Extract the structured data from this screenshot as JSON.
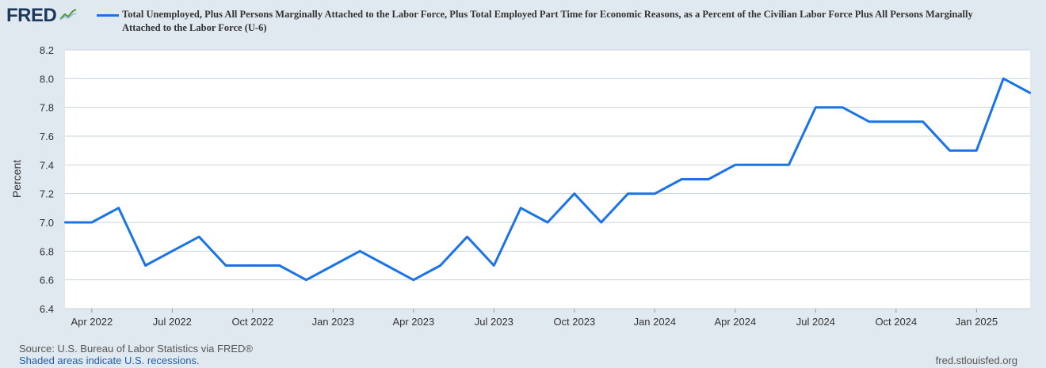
{
  "header": {
    "logo_text": "FRED",
    "logo_icon": "chart-line-icon",
    "series_title": "Total Unemployed, Plus All Persons Marginally Attached to the Labor Force, Plus Total Employed Part Time for Economic Reasons, as a Percent of the Civilian Labor Force Plus All Persons Marginally Attached to the Labor Force (U-6)"
  },
  "footer": {
    "source": "Source: U.S. Bureau of Labor Statistics via FRED®",
    "recessions": "Shaded areas indicate U.S. recessions.",
    "site": "fred.stlouisfed.org"
  },
  "colors": {
    "line": "#1a73e8",
    "background": "#e1e9f0",
    "plot": "#ffffff",
    "grid": "#c9d3dd"
  },
  "chart_data": {
    "type": "line",
    "ylabel": "Percent",
    "xlabel": "",
    "ylim": [
      6.4,
      8.2
    ],
    "y_ticks": [
      "6.4",
      "6.6",
      "6.8",
      "7.0",
      "7.2",
      "7.4",
      "7.6",
      "7.8",
      "8.0",
      "8.2"
    ],
    "x_ticks": [
      {
        "label": "Apr 2022",
        "date": "2022-04"
      },
      {
        "label": "Jul 2022",
        "date": "2022-07"
      },
      {
        "label": "Oct 2022",
        "date": "2022-10"
      },
      {
        "label": "Jan 2023",
        "date": "2023-01"
      },
      {
        "label": "Apr 2023",
        "date": "2023-04"
      },
      {
        "label": "Jul 2023",
        "date": "2023-07"
      },
      {
        "label": "Oct 2023",
        "date": "2023-10"
      },
      {
        "label": "Jan 2024",
        "date": "2024-01"
      },
      {
        "label": "Apr 2024",
        "date": "2024-04"
      },
      {
        "label": "Jul 2024",
        "date": "2024-07"
      },
      {
        "label": "Oct 2024",
        "date": "2024-10"
      },
      {
        "label": "Jan 2025",
        "date": "2025-01"
      }
    ],
    "grid": true,
    "series": [
      {
        "x": [
          "2022-03",
          "2022-04",
          "2022-05",
          "2022-06",
          "2022-07",
          "2022-08",
          "2022-09",
          "2022-10",
          "2022-11",
          "2022-12",
          "2023-01",
          "2023-02",
          "2023-03",
          "2023-04",
          "2023-05",
          "2023-06",
          "2023-07",
          "2023-08",
          "2023-09",
          "2023-10",
          "2023-11",
          "2023-12",
          "2024-01",
          "2024-02",
          "2024-03",
          "2024-04",
          "2024-05",
          "2024-06",
          "2024-07",
          "2024-08",
          "2024-09",
          "2024-10",
          "2024-11",
          "2024-12",
          "2025-01",
          "2025-02",
          "2025-03"
        ],
        "values": [
          7.0,
          7.0,
          7.1,
          6.7,
          6.8,
          6.9,
          6.7,
          6.7,
          6.7,
          6.6,
          6.7,
          6.8,
          6.7,
          6.6,
          6.7,
          6.9,
          6.7,
          7.1,
          7.0,
          7.2,
          7.0,
          7.2,
          7.2,
          7.3,
          7.3,
          7.4,
          7.4,
          7.4,
          7.8,
          7.8,
          7.7,
          7.7,
          7.7,
          7.5,
          7.5,
          8.0,
          7.9
        ]
      }
    ]
  }
}
